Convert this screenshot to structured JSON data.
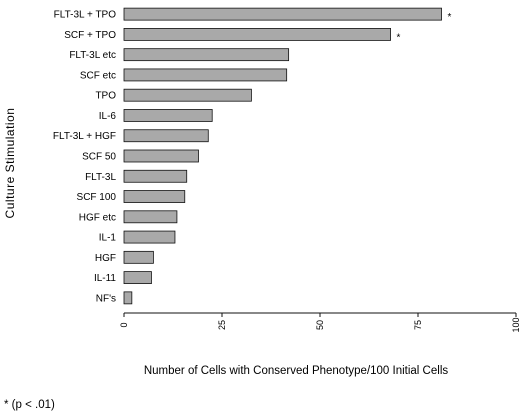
{
  "chart_data": {
    "type": "bar",
    "orientation": "horizontal",
    "categories": [
      "FLT-3L + TPO",
      "SCF + TPO",
      "FLT-3L etc",
      "SCF etc",
      "TPO",
      "IL-6",
      "FLT-3L + HGF",
      "SCF 50",
      "FLT-3L",
      "SCF 100",
      "HGF etc",
      "IL-1",
      "HGF",
      "IL-11",
      "NF's"
    ],
    "values": [
      81,
      68,
      42,
      41.5,
      32.5,
      22.5,
      21.5,
      19,
      16,
      15.5,
      13.5,
      13,
      7.5,
      7,
      2
    ],
    "markers": [
      "*",
      "*",
      "",
      "",
      "",
      "",
      "",
      "",
      "",
      "",
      "",
      "",
      "",
      "",
      ""
    ],
    "xlabel": "Number of Cells with Conserved Phenotype/100 Initial Cells",
    "ylabel": "Culture Stimulation",
    "xlim": [
      0,
      100
    ],
    "xticks": [
      0,
      25,
      50,
      75,
      100
    ],
    "bar_color": "#a9a9a9",
    "footnote": "* (p < .01)"
  }
}
